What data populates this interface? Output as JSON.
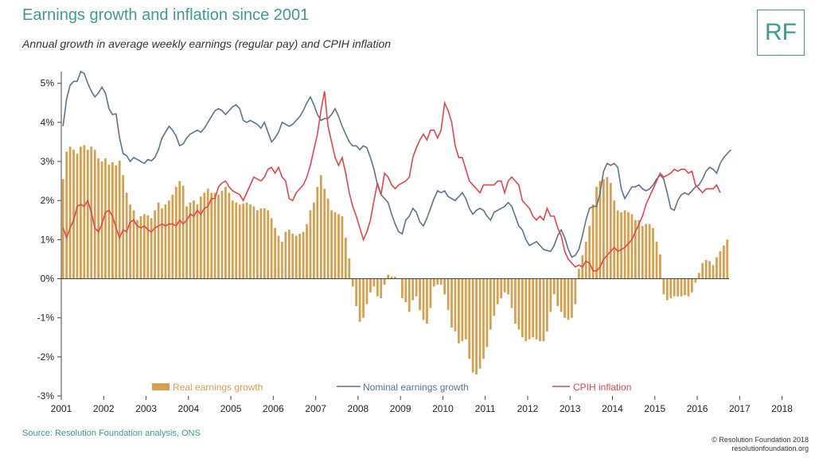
{
  "header": {
    "title": "Earnings growth and inflation since 2001",
    "subtitle": "Annual growth in average weekly earnings (regular pay) and CPIH inflation",
    "logo_text": "RF"
  },
  "footer": {
    "source": "Source: Resolution Foundation analysis, ONS",
    "copyright": "© Resolution Foundation 2018",
    "website": "resolutionfoundation.org"
  },
  "colors": {
    "real": "#d4a050",
    "nominal": "#5b7290",
    "cpih": "#e0474c",
    "accent": "#3d9a92"
  },
  "chart_data": {
    "type": "bar",
    "title": "",
    "xlabel": "",
    "ylabel": "",
    "ylim": [
      -3,
      5.3
    ],
    "y_ticks": [
      5,
      4,
      3,
      2,
      1,
      0,
      -1,
      -2,
      -3
    ],
    "y_tick_labels": [
      "5%",
      "4%",
      "3%",
      "2%",
      "1%",
      "0%",
      "-1%",
      "-2%",
      "-3%"
    ],
    "x_tick_labels": [
      "2001",
      "2002",
      "2003",
      "2004",
      "2005",
      "2006",
      "2007",
      "2008",
      "2009",
      "2010",
      "2011",
      "2012",
      "2013",
      "2014",
      "2015",
      "2016",
      "2017",
      "2018"
    ],
    "grid": false,
    "legend_position": "bottom",
    "x_start": "2001-01",
    "x_end": "2018-09",
    "series": [
      {
        "name": "Real earnings growth",
        "type": "bar",
        "values": [
          2.55,
          3.25,
          3.38,
          3.3,
          3.2,
          3.38,
          3.42,
          3.3,
          3.38,
          3.3,
          3.08,
          3.0,
          3.08,
          2.92,
          2.98,
          2.9,
          3.02,
          2.65,
          2.2,
          1.9,
          1.75,
          1.5,
          1.6,
          1.65,
          1.62,
          1.55,
          1.75,
          1.95,
          1.8,
          1.9,
          2.0,
          2.15,
          2.35,
          2.5,
          2.38,
          1.85,
          1.95,
          2.0,
          1.9,
          2.1,
          2.2,
          2.3,
          2.2,
          2.2,
          2.15,
          2.25,
          2.35,
          2.2,
          2.0,
          1.95,
          1.9,
          1.92,
          1.95,
          1.9,
          1.85,
          1.75,
          1.8,
          1.8,
          1.75,
          1.55,
          1.3,
          1.1,
          0.95,
          1.2,
          1.25,
          1.15,
          1.1,
          1.15,
          1.2,
          1.4,
          1.75,
          1.95,
          2.35,
          2.65,
          2.3,
          2.05,
          1.75,
          1.7,
          1.65,
          1.6,
          1.05,
          0.52,
          -0.2,
          -0.7,
          -1.1,
          -1.0,
          -0.65,
          -0.35,
          -0.2,
          -0.45,
          -0.5,
          -0.15,
          0.1,
          0.05,
          0.05,
          0.0,
          -0.5,
          -0.6,
          -0.85,
          -0.55,
          -0.45,
          -0.8,
          -1.05,
          -1.15,
          -0.75,
          -0.2,
          -0.15,
          -0.15,
          -0.4,
          -0.8,
          -1.25,
          -1.35,
          -1.65,
          -1.6,
          -1.55,
          -2.05,
          -2.4,
          -2.45,
          -2.3,
          -2.05,
          -1.75,
          -1.3,
          -0.95,
          -0.65,
          -0.5,
          -0.35,
          -0.4,
          -0.75,
          -1.15,
          -1.3,
          -1.5,
          -1.6,
          -1.55,
          -1.5,
          -1.55,
          -1.6,
          -1.6,
          -1.35,
          -0.85,
          -0.4,
          -0.7,
          -0.85,
          -1.0,
          -1.05,
          -1.0,
          -0.65,
          0.25,
          0.6,
          0.95,
          1.35,
          1.9,
          2.35,
          2.5,
          2.55,
          2.6,
          2.45,
          2.0,
          1.75,
          1.7,
          1.75,
          1.7,
          1.65,
          1.5,
          1.5,
          1.35,
          1.4,
          1.4,
          1.3,
          0.95,
          0.62,
          -0.4,
          -0.55,
          -0.5,
          -0.45,
          -0.45,
          -0.45,
          -0.42,
          -0.45,
          -0.35,
          -0.1,
          0.15,
          0.4,
          0.48,
          0.45,
          0.35,
          0.55,
          0.7,
          0.85,
          1.0
        ]
      },
      {
        "name": "Nominal earnings growth",
        "type": "line",
        "values": [
          3.9,
          4.6,
          4.95,
          5.05,
          5.05,
          5.3,
          5.25,
          5.0,
          4.8,
          4.65,
          4.75,
          4.9,
          4.75,
          4.35,
          4.2,
          4.22,
          3.6,
          3.2,
          3.15,
          3.0,
          3.1,
          3.05,
          3.0,
          2.95,
          3.05,
          3.02,
          3.1,
          3.3,
          3.6,
          3.75,
          3.9,
          3.8,
          3.65,
          3.4,
          3.45,
          3.6,
          3.7,
          3.75,
          3.8,
          3.75,
          3.85,
          4.0,
          4.15,
          4.3,
          4.35,
          4.3,
          4.2,
          4.3,
          4.4,
          4.45,
          4.35,
          4.05,
          4.0,
          4.05,
          4.0,
          3.95,
          3.85,
          4.0,
          3.75,
          3.5,
          3.6,
          3.75,
          4.0,
          3.95,
          3.9,
          3.95,
          4.05,
          4.15,
          4.3,
          4.5,
          4.65,
          4.45,
          4.2,
          4.05,
          4.1,
          4.1,
          4.2,
          4.35,
          4.15,
          3.9,
          3.7,
          3.5,
          3.4,
          3.4,
          3.3,
          3.4,
          3.35,
          3.1,
          2.8,
          2.4,
          2.15,
          2.05,
          1.95,
          1.65,
          1.4,
          1.2,
          1.15,
          1.5,
          1.6,
          1.8,
          1.7,
          1.45,
          1.35,
          1.55,
          1.8,
          2.05,
          2.25,
          2.2,
          2.25,
          2.1,
          2.05,
          2.0,
          2.1,
          2.2,
          2.05,
          1.8,
          1.65,
          1.75,
          1.8,
          1.75,
          1.6,
          1.5,
          1.7,
          1.75,
          1.8,
          1.85,
          1.95,
          1.85,
          1.6,
          1.35,
          1.25,
          1.0,
          0.85,
          0.9,
          0.95,
          0.85,
          0.75,
          0.72,
          0.7,
          0.85,
          1.1,
          1.25,
          1.05,
          0.75,
          0.55,
          0.6,
          0.75,
          1.1,
          1.5,
          1.8,
          1.85,
          1.85,
          2.2,
          2.75,
          2.95,
          2.9,
          2.95,
          2.85,
          2.3,
          2.05,
          2.2,
          2.35,
          2.35,
          2.4,
          2.3,
          2.25,
          2.3,
          2.4,
          2.55,
          2.65,
          2.55,
          2.2,
          1.8,
          1.75,
          2.0,
          2.15,
          2.2,
          2.15,
          2.25,
          2.35,
          2.4,
          2.55,
          2.75,
          2.85,
          2.8,
          2.7,
          2.95,
          3.1,
          3.2,
          3.3
        ]
      },
      {
        "name": "CPIH inflation",
        "type": "line",
        "values": [
          1.3,
          1.05,
          1.3,
          1.5,
          1.85,
          1.9,
          1.85,
          2.0,
          1.7,
          1.3,
          1.2,
          1.4,
          1.7,
          1.75,
          1.6,
          1.3,
          1.05,
          1.25,
          1.2,
          1.45,
          1.5,
          1.35,
          1.3,
          1.35,
          1.25,
          1.2,
          1.3,
          1.35,
          1.4,
          1.35,
          1.4,
          1.4,
          1.35,
          1.5,
          1.4,
          1.5,
          1.65,
          1.6,
          1.75,
          1.65,
          1.8,
          1.85,
          2.05,
          2.05,
          2.35,
          2.45,
          2.5,
          2.35,
          2.25,
          2.2,
          2.15,
          2.0,
          2.2,
          2.4,
          2.6,
          2.55,
          2.5,
          2.6,
          2.8,
          2.85,
          2.7,
          2.85,
          2.6,
          2.5,
          2.05,
          2.0,
          2.2,
          2.3,
          2.4,
          2.6,
          2.9,
          3.3,
          3.7,
          4.3,
          4.8,
          3.9,
          3.5,
          3.1,
          2.9,
          3.1,
          2.7,
          2.2,
          1.85,
          1.6,
          1.3,
          1.0,
          1.2,
          1.5,
          2.0,
          2.45,
          2.15,
          2.7,
          2.6,
          2.4,
          2.3,
          2.4,
          2.45,
          2.5,
          2.6,
          3.1,
          3.35,
          3.55,
          3.7,
          3.55,
          3.8,
          3.8,
          3.6,
          3.8,
          4.5,
          4.3,
          4.0,
          3.4,
          3.1,
          3.1,
          2.8,
          2.5,
          2.4,
          2.3,
          2.2,
          2.4,
          2.4,
          2.4,
          2.4,
          2.5,
          2.5,
          2.2,
          2.5,
          2.6,
          2.5,
          2.4,
          2.0,
          1.9,
          1.8,
          1.6,
          1.5,
          1.6,
          1.5,
          1.8,
          1.6,
          1.6,
          1.3,
          1.1,
          0.7,
          0.5,
          0.4,
          0.3,
          0.35,
          0.3,
          0.45,
          0.4,
          0.2,
          0.2,
          0.3,
          0.5,
          0.6,
          0.7,
          0.8,
          0.7,
          0.75,
          0.8,
          0.9,
          1.0,
          1.2,
          1.4,
          1.6,
          1.9,
          2.1,
          2.3,
          2.5,
          2.7,
          2.6,
          2.65,
          2.7,
          2.8,
          2.75,
          2.8,
          2.8,
          2.7,
          2.75,
          2.4,
          2.3,
          2.2,
          2.3,
          2.3,
          2.3,
          2.4,
          2.2
        ]
      }
    ]
  }
}
